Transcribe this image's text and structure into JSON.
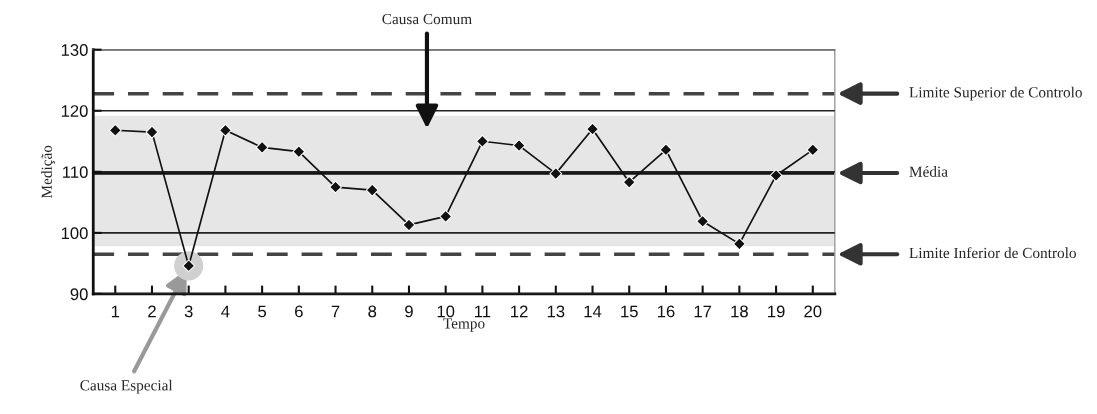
{
  "chart_data": {
    "type": "line",
    "xlabel": "Tempo",
    "ylabel": "Medição",
    "categories": [
      "1",
      "2",
      "3",
      "4",
      "5",
      "6",
      "7",
      "8",
      "9",
      "10",
      "11",
      "12",
      "13",
      "14",
      "15",
      "16",
      "17",
      "18",
      "19",
      "20"
    ],
    "series": [
      {
        "color": "#111111",
        "values": [
          116.8,
          116.5,
          94.6,
          116.8,
          114.0,
          113.3,
          107.5,
          107.0,
          101.3,
          102.7,
          115.0,
          114.3,
          109.7,
          117.0,
          108.3,
          113.6,
          101.9,
          98.2,
          109.4,
          113.6
        ]
      }
    ],
    "ylim": [
      90,
      130
    ],
    "yticks": [
      90,
      100,
      110,
      120,
      130
    ],
    "grid": "y",
    "marker": "diamond",
    "line_style": "solid",
    "ref_lines": [
      {
        "axis": "y",
        "value": 122.8,
        "label": "Limite Superior de Controlo",
        "line_style": "dashed",
        "color": "#444444"
      },
      {
        "axis": "y",
        "value": 109.8,
        "label": "Média",
        "line_style": "solid",
        "color": "#111111"
      },
      {
        "axis": "y",
        "value": 96.5,
        "label": "Limite Inferior de Controlo",
        "line_style": "dashed",
        "color": "#444444"
      }
    ],
    "bands": [
      {
        "axis": "y",
        "from": 97.8,
        "to": 119.2,
        "label": "Causa Comum",
        "color": "#e6e6e6"
      }
    ],
    "annotations": [
      {
        "text": "Causa Especial",
        "x": "3",
        "y": 94.6
      }
    ]
  }
}
